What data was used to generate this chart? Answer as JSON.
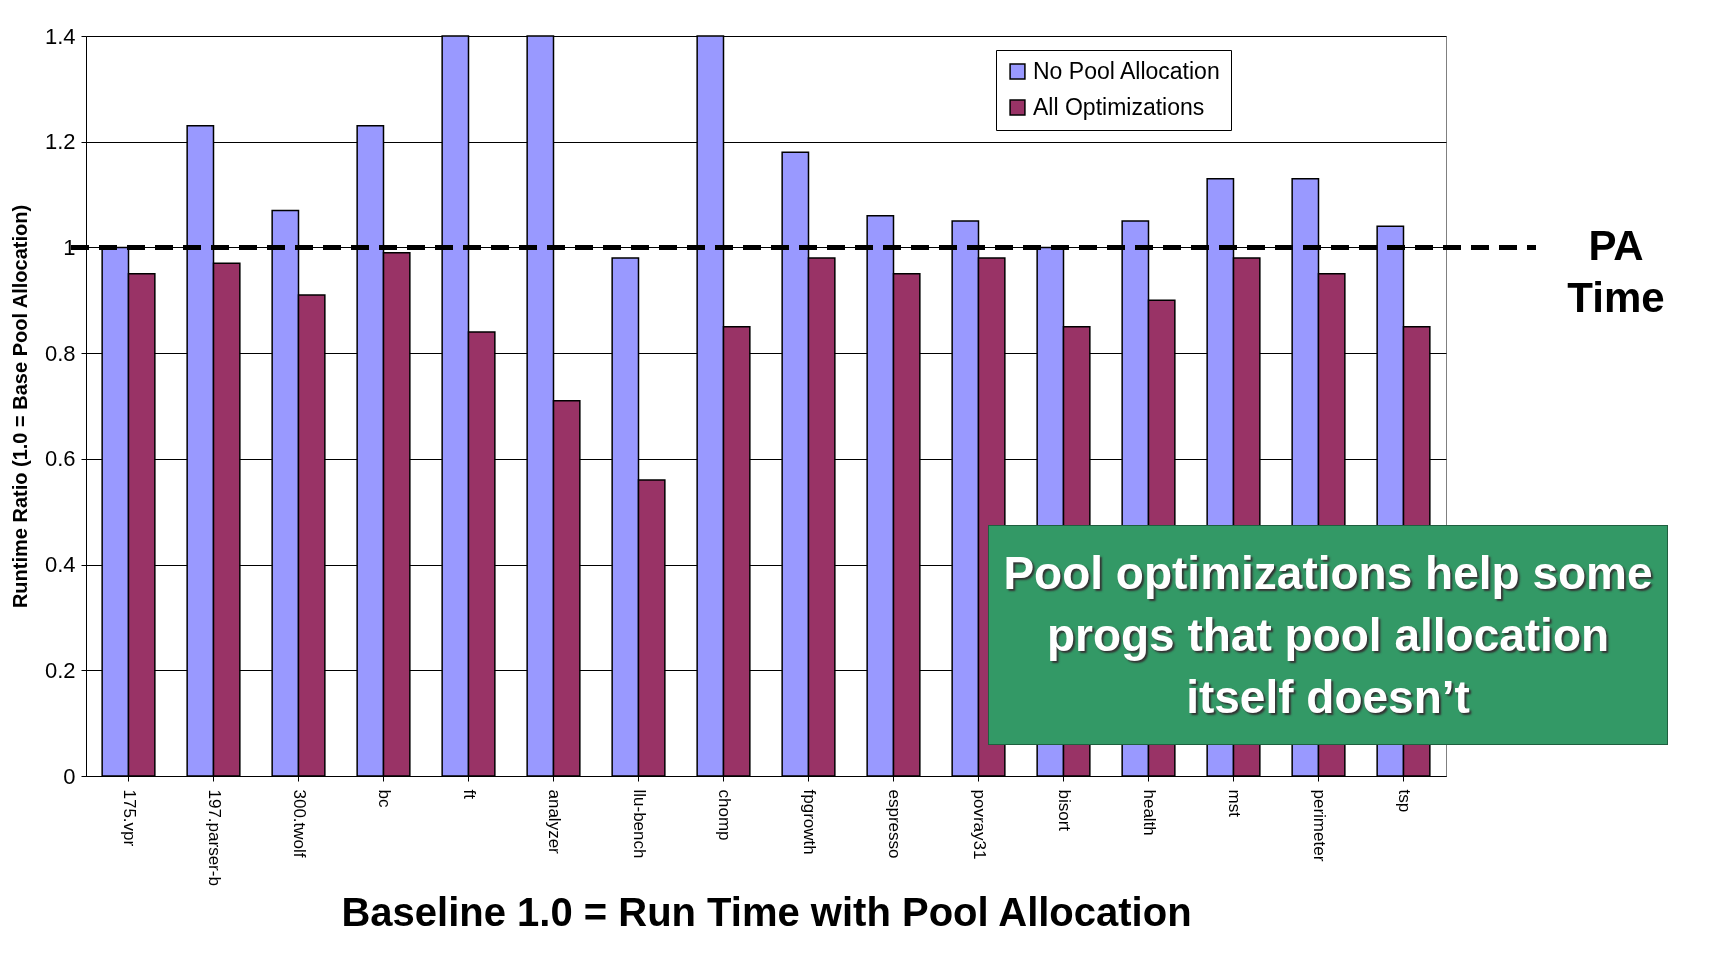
{
  "chart_data": {
    "type": "bar",
    "xlabel": "Baseline 1.0 = Run Time with Pool Allocation",
    "ylabel": "Runtime Ratio (1.0 = Base Pool Allocation)",
    "categories": [
      "175.vpr",
      "197.parser-b",
      "300.twolf",
      "bc",
      "ft",
      "analyzer",
      "llu-bench",
      "chomp",
      "fpgrowth",
      "espresso",
      "povray31",
      "bisort",
      "health",
      "mst",
      "perimeter",
      "tsp"
    ],
    "series": [
      {
        "name": "No Pool Allocation",
        "color": "#9999ff",
        "values": [
          1.0,
          1.23,
          1.07,
          1.23,
          1.4,
          1.4,
          0.98,
          1.4,
          1.18,
          1.06,
          1.05,
          1.0,
          1.05,
          1.13,
          1.13,
          1.04
        ]
      },
      {
        "name": "All Optimizations",
        "color": "#993366",
        "values": [
          0.95,
          0.97,
          0.91,
          0.99,
          0.84,
          0.71,
          0.56,
          0.85,
          0.98,
          0.95,
          0.98,
          0.85,
          0.9,
          0.98,
          0.95,
          0.85
        ]
      }
    ],
    "ylim": [
      0,
      1.4
    ],
    "yticks": [
      0,
      0.2,
      0.4,
      0.6,
      0.8,
      1,
      1.2,
      1.4
    ],
    "grid": "y",
    "legend": "top right",
    "ref_lines": [
      {
        "axis": "y",
        "value": 1,
        "label": "PA Time",
        "color": "#000000",
        "line_style": "dashed"
      }
    ],
    "annotations": [
      "Pool optimizations help some progs that pool allocation itself doesn’t"
    ]
  }
}
